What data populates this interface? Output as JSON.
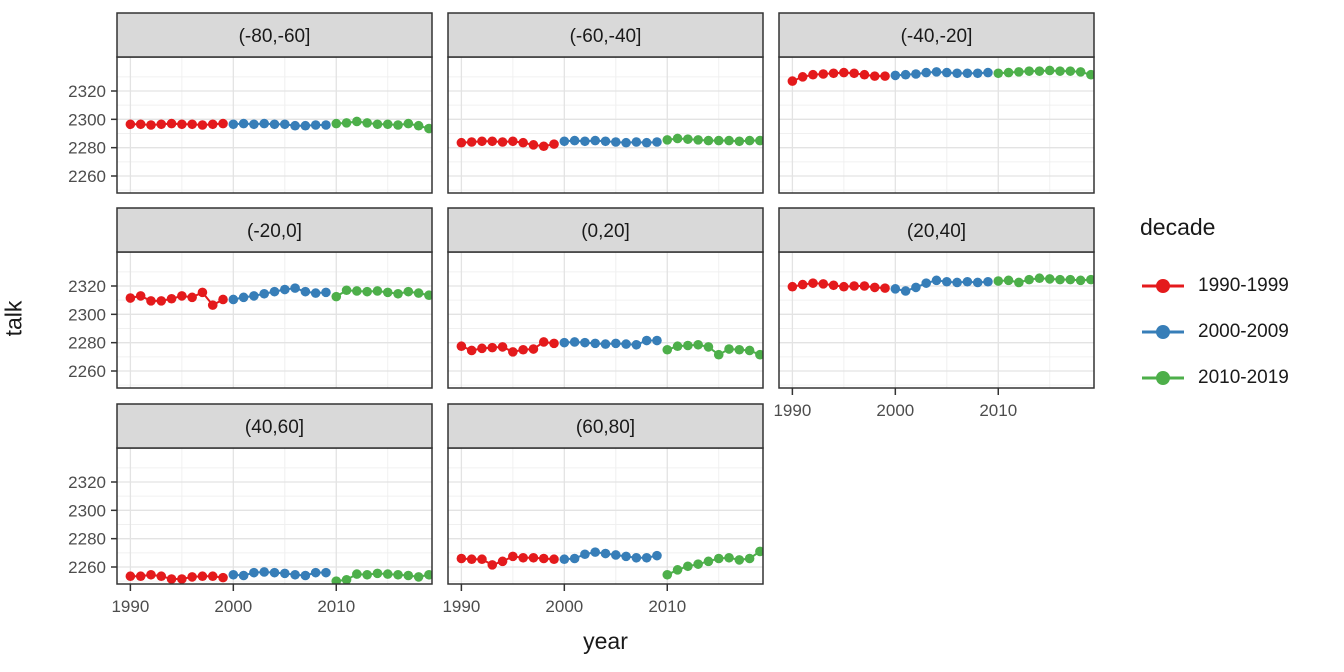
{
  "chart_data": {
    "type": "scatter",
    "title": "",
    "xlabel": "year",
    "ylabel": "talk",
    "xlim": [
      1988.7,
      2019.3
    ],
    "ylim": [
      2248,
      2344
    ],
    "xticks": [
      1990,
      2000,
      2010
    ],
    "yticks": [
      2260,
      2280,
      2300,
      2320
    ],
    "x_minor": [
      1995,
      2005,
      2015
    ],
    "y_minor": [
      2250,
      2270,
      2290,
      2310,
      2330
    ],
    "grid": "on",
    "decades": [
      {
        "name": "1990-1999",
        "start_year": 1990,
        "color": "#E41A1C"
      },
      {
        "name": "2000-2009",
        "start_year": 2000,
        "color": "#377EB8"
      },
      {
        "name": "2010-2019",
        "start_year": 2010,
        "color": "#4DAF4A"
      }
    ],
    "facets": [
      {
        "label": "(-80,-60]",
        "series": [
          [
            2296.5,
            2296.5,
            2296,
            2296.5,
            2297,
            2296.5,
            2296.5,
            2296,
            2296.5,
            2297
          ],
          [
            2296.5,
            2297,
            2296.5,
            2297,
            2296.5,
            2296.5,
            2295.5,
            2295.5,
            2296,
            2296
          ],
          [
            2297,
            2297.5,
            2298.5,
            2297.5,
            2296.5,
            2296.5,
            2296,
            2297,
            2295.5,
            2293.5
          ]
        ]
      },
      {
        "label": "(-60,-40]",
        "series": [
          [
            2283.5,
            2284,
            2284.5,
            2284.5,
            2284,
            2284.5,
            2283.5,
            2282,
            2281,
            2282.5
          ],
          [
            2284.5,
            2285,
            2284.5,
            2285,
            2284.5,
            2284,
            2283.5,
            2284,
            2283.5,
            2284
          ],
          [
            2285.5,
            2286.5,
            2286,
            2285.5,
            2285,
            2285,
            2285,
            2284.5,
            2285,
            2285
          ]
        ]
      },
      {
        "label": "(-40,-20]",
        "series": [
          [
            2327,
            2330,
            2331.5,
            2332,
            2332.5,
            2333,
            2332.5,
            2331.5,
            2330.5,
            2330.5
          ],
          [
            2331,
            2331.5,
            2332,
            2333,
            2333.5,
            2333,
            2332.5,
            2332.5,
            2332.5,
            2333
          ],
          [
            2332.5,
            2333,
            2333.5,
            2334,
            2334,
            2334.5,
            2334,
            2334,
            2333.5,
            2331.5
          ]
        ]
      },
      {
        "label": "(-20,0]",
        "series": [
          [
            2311.5,
            2313,
            2309.5,
            2309.5,
            2311,
            2313,
            2312,
            2315.5,
            2306.5,
            2310.5
          ],
          [
            2310.5,
            2312,
            2313,
            2314.5,
            2316,
            2317.5,
            2318.5,
            2316,
            2315,
            2315.5
          ],
          [
            2312.5,
            2317,
            2316.5,
            2316,
            2316.5,
            2315.5,
            2314.5,
            2316,
            2315,
            2313.5
          ]
        ]
      },
      {
        "label": "(0,20]",
        "series": [
          [
            2277.5,
            2274.5,
            2276,
            2276.5,
            2277,
            2273.5,
            2275,
            2275.5,
            2280.5,
            2279.5
          ],
          [
            2280,
            2280.5,
            2280,
            2279.5,
            2279,
            2279.5,
            2279,
            2278.5,
            2281.5,
            2281.5
          ],
          [
            2275,
            2277.5,
            2278,
            2278.5,
            2277,
            2271.5,
            2275.5,
            2275,
            2274.5,
            2271.5
          ]
        ]
      },
      {
        "label": "(20,40]",
        "series": [
          [
            2319.5,
            2321,
            2322,
            2321.5,
            2320.5,
            2319.5,
            2320,
            2320,
            2319,
            2318.5
          ],
          [
            2318,
            2316.5,
            2319,
            2322,
            2324,
            2323,
            2322.5,
            2323,
            2322.5,
            2323
          ],
          [
            2323.5,
            2324,
            2322.5,
            2324.5,
            2325.5,
            2325,
            2324.5,
            2324.5,
            2324,
            2324.5
          ]
        ]
      },
      {
        "label": "(40,60]",
        "series": [
          [
            2253.5,
            2253.5,
            2254.5,
            2253.5,
            2251.5,
            2251.5,
            2253,
            2253.5,
            2253.5,
            2252.5
          ],
          [
            2254.5,
            2254,
            2256,
            2256.5,
            2256,
            2255.5,
            2254.5,
            2254,
            2256,
            2256
          ],
          [
            2250,
            2251,
            2255,
            2254.5,
            2255.5,
            2255,
            2254.5,
            2254,
            2253,
            2254.5
          ]
        ]
      },
      {
        "label": "(60,80]",
        "series": [
          [
            2266,
            2265.5,
            2265.5,
            2261.5,
            2264,
            2267.5,
            2266.5,
            2266.5,
            2266,
            2265.5
          ],
          [
            2265.5,
            2266,
            2269,
            2270.5,
            2269.5,
            2268.5,
            2267.5,
            2266.5,
            2266.5,
            2268
          ],
          [
            2254.5,
            2258,
            2260.5,
            2262,
            2264,
            2266,
            2266.5,
            2265,
            2266,
            2271
          ]
        ]
      },
      null
    ],
    "legend": {
      "title": "decade",
      "position": "right",
      "entries": [
        {
          "label": "1990-1999",
          "color": "#E41A1C"
        },
        {
          "label": "2000-2009",
          "color": "#377EB8"
        },
        {
          "label": "2010-2019",
          "color": "#4DAF4A"
        }
      ]
    },
    "theme": {
      "strip_bg": "#d9d9d9",
      "border": "#333333",
      "grid_major": "#e3e3e3",
      "grid_minor": "#f0f0f0",
      "tick_label_color": "#4d4d4d",
      "text_color": "#1a1a1a"
    }
  }
}
